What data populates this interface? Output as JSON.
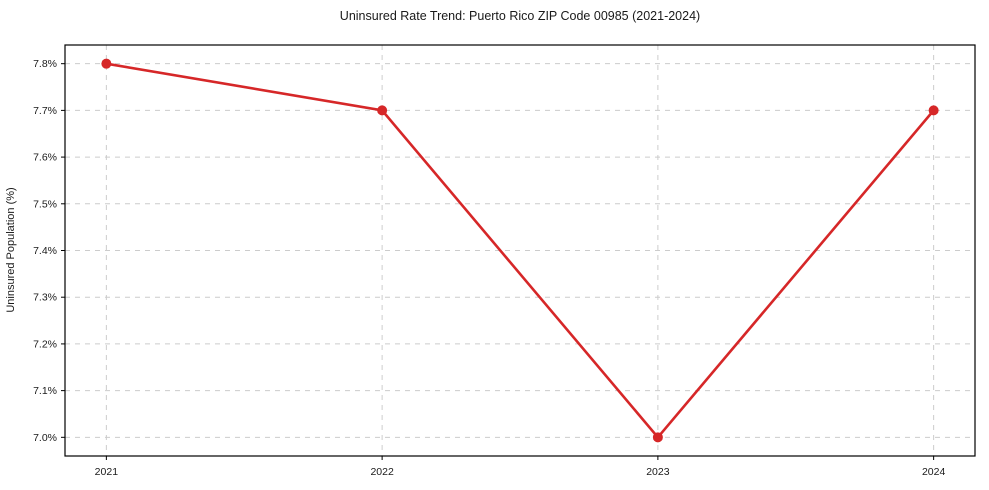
{
  "chart_data": {
    "type": "line",
    "title": "Uninsured Rate Trend: Puerto Rico ZIP Code 00985 (2021-2024)",
    "xlabel": "",
    "ylabel": "Uninsured Population (%)",
    "x": [
      2021,
      2022,
      2023,
      2024
    ],
    "series": [
      {
        "name": "Uninsured Rate",
        "values": [
          7.8,
          7.7,
          7.0,
          7.7
        ]
      }
    ],
    "xtick_values": [
      2021,
      2022,
      2023,
      2024
    ],
    "xtick_labels": [
      "2021",
      "2022",
      "2023",
      "2024"
    ],
    "ytick_values": [
      7.0,
      7.1,
      7.2,
      7.3,
      7.4,
      7.5,
      7.6,
      7.7,
      7.8
    ],
    "ytick_labels": [
      "7.0%",
      "7.1%",
      "7.2%",
      "7.3%",
      "7.4%",
      "7.5%",
      "7.6%",
      "7.7%",
      "7.8%"
    ],
    "xlim": [
      2020.85,
      2024.15
    ],
    "ylim": [
      6.96,
      7.84
    ],
    "grid": true,
    "grid_style": "dashed",
    "legend": "none",
    "colors": {
      "line": "#d62728",
      "marker": "#d62728",
      "grid": "#cccccc",
      "spine": "#000000",
      "text": "#1a1a1a",
      "background": "#ffffff"
    }
  }
}
